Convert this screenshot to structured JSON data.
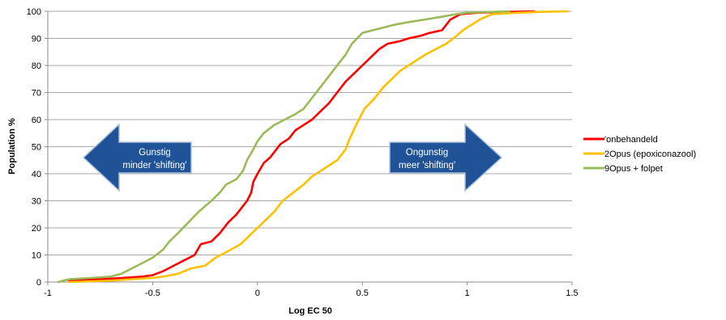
{
  "chart_data": {
    "type": "line",
    "title": "",
    "xlabel": "Log EC 50",
    "ylabel": "Population %",
    "xlim": [
      -1,
      1.5
    ],
    "ylim": [
      0,
      100
    ],
    "x_ticks": [
      "-1",
      "-0.5",
      "0",
      "0.5",
      "1",
      "1.5"
    ],
    "y_ticks": [
      "0",
      "10",
      "20",
      "30",
      "40",
      "50",
      "60",
      "70",
      "80",
      "90",
      "100"
    ],
    "grid": "horizontal",
    "legend_position": "right",
    "series": [
      {
        "name": "onbehandeld",
        "legend_prefix": "'",
        "color": "#ff0000",
        "points": [
          [
            -0.9,
            0.5
          ],
          [
            -0.75,
            1
          ],
          [
            -0.65,
            1.5
          ],
          [
            -0.55,
            2
          ],
          [
            -0.5,
            2.5
          ],
          [
            -0.45,
            4
          ],
          [
            -0.4,
            6
          ],
          [
            -0.35,
            8
          ],
          [
            -0.3,
            10
          ],
          [
            -0.27,
            14
          ],
          [
            -0.22,
            15
          ],
          [
            -0.18,
            18
          ],
          [
            -0.14,
            22
          ],
          [
            -0.1,
            25
          ],
          [
            -0.07,
            28
          ],
          [
            -0.05,
            30
          ],
          [
            -0.03,
            33
          ],
          [
            -0.02,
            37
          ],
          [
            0,
            40
          ],
          [
            0.03,
            44
          ],
          [
            0.06,
            46
          ],
          [
            0.08,
            48
          ],
          [
            0.11,
            51
          ],
          [
            0.15,
            53
          ],
          [
            0.18,
            56
          ],
          [
            0.22,
            58
          ],
          [
            0.26,
            60
          ],
          [
            0.3,
            63
          ],
          [
            0.34,
            66
          ],
          [
            0.38,
            70
          ],
          [
            0.42,
            74
          ],
          [
            0.46,
            77
          ],
          [
            0.5,
            80
          ],
          [
            0.54,
            83
          ],
          [
            0.58,
            86
          ],
          [
            0.62,
            88
          ],
          [
            0.68,
            89
          ],
          [
            0.72,
            90
          ],
          [
            0.78,
            91
          ],
          [
            0.82,
            92
          ],
          [
            0.88,
            93
          ],
          [
            0.92,
            97
          ],
          [
            0.97,
            99
          ],
          [
            1.05,
            99.5
          ],
          [
            1.15,
            99.7
          ],
          [
            1.32,
            100
          ]
        ]
      },
      {
        "name": "Opus (epoxiconazool)",
        "legend_prefix": "2",
        "color": "#ffc000",
        "points": [
          [
            -0.9,
            0
          ],
          [
            -0.7,
            0.5
          ],
          [
            -0.6,
            1
          ],
          [
            -0.5,
            1.5
          ],
          [
            -0.45,
            2
          ],
          [
            -0.38,
            3
          ],
          [
            -0.32,
            5
          ],
          [
            -0.25,
            6
          ],
          [
            -0.2,
            9
          ],
          [
            -0.15,
            11
          ],
          [
            -0.08,
            14
          ],
          [
            -0.04,
            17
          ],
          [
            0,
            20
          ],
          [
            0.04,
            23
          ],
          [
            0.08,
            26
          ],
          [
            0.12,
            30
          ],
          [
            0.17,
            33
          ],
          [
            0.22,
            36
          ],
          [
            0.26,
            39
          ],
          [
            0.3,
            41
          ],
          [
            0.34,
            43
          ],
          [
            0.38,
            45
          ],
          [
            0.42,
            49
          ],
          [
            0.44,
            53
          ],
          [
            0.47,
            58
          ],
          [
            0.51,
            64
          ],
          [
            0.56,
            68
          ],
          [
            0.6,
            72
          ],
          [
            0.64,
            75
          ],
          [
            0.68,
            78
          ],
          [
            0.72,
            80
          ],
          [
            0.76,
            82
          ],
          [
            0.8,
            84
          ],
          [
            0.85,
            86
          ],
          [
            0.9,
            88
          ],
          [
            0.95,
            91
          ],
          [
            0.98,
            93
          ],
          [
            1.02,
            95
          ],
          [
            1.06,
            97
          ],
          [
            1.12,
            99
          ],
          [
            1.25,
            99.5
          ],
          [
            1.35,
            99.8
          ],
          [
            1.48,
            100
          ]
        ]
      },
      {
        "name": "Opus + folpet",
        "legend_prefix": "9",
        "color": "#9bbb59",
        "points": [
          [
            -0.95,
            0
          ],
          [
            -0.9,
            1
          ],
          [
            -0.8,
            1.5
          ],
          [
            -0.7,
            2
          ],
          [
            -0.65,
            3
          ],
          [
            -0.6,
            5
          ],
          [
            -0.55,
            7
          ],
          [
            -0.5,
            9
          ],
          [
            -0.45,
            12
          ],
          [
            -0.42,
            15
          ],
          [
            -0.38,
            18
          ],
          [
            -0.33,
            22
          ],
          [
            -0.28,
            26
          ],
          [
            -0.22,
            30
          ],
          [
            -0.18,
            33
          ],
          [
            -0.15,
            36
          ],
          [
            -0.1,
            38
          ],
          [
            -0.07,
            41
          ],
          [
            -0.05,
            45
          ],
          [
            -0.02,
            49
          ],
          [
            0,
            52
          ],
          [
            0.03,
            55
          ],
          [
            0.08,
            58
          ],
          [
            0.13,
            60
          ],
          [
            0.18,
            62
          ],
          [
            0.22,
            64
          ],
          [
            0.26,
            68
          ],
          [
            0.3,
            72
          ],
          [
            0.34,
            76
          ],
          [
            0.38,
            80
          ],
          [
            0.42,
            84
          ],
          [
            0.45,
            88
          ],
          [
            0.5,
            92
          ],
          [
            0.55,
            93
          ],
          [
            0.6,
            94
          ],
          [
            0.65,
            95
          ],
          [
            0.72,
            96
          ],
          [
            0.8,
            97
          ],
          [
            0.88,
            98
          ],
          [
            0.95,
            99
          ],
          [
            1.0,
            99.5
          ],
          [
            1.2,
            100
          ]
        ]
      }
    ],
    "annotations": [
      {
        "line1": "Gunstig",
        "line2": "minder 'shifting'",
        "direction": "left"
      },
      {
        "line1": "Ongunstig",
        "line2": "meer 'shifting'",
        "direction": "right"
      }
    ]
  }
}
